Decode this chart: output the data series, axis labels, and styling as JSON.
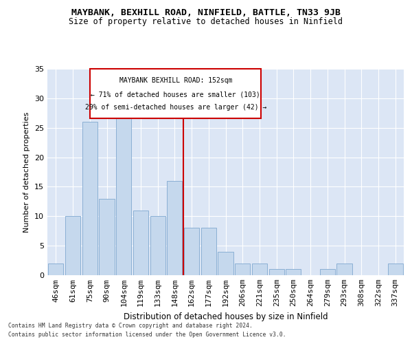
{
  "title1": "MAYBANK, BEXHILL ROAD, NINFIELD, BATTLE, TN33 9JB",
  "title2": "Size of property relative to detached houses in Ninfield",
  "xlabel": "Distribution of detached houses by size in Ninfield",
  "ylabel": "Number of detached properties",
  "categories": [
    "46sqm",
    "61sqm",
    "75sqm",
    "90sqm",
    "104sqm",
    "119sqm",
    "133sqm",
    "148sqm",
    "162sqm",
    "177sqm",
    "192sqm",
    "206sqm",
    "221sqm",
    "235sqm",
    "250sqm",
    "264sqm",
    "279sqm",
    "293sqm",
    "308sqm",
    "322sqm",
    "337sqm"
  ],
  "values": [
    2,
    10,
    26,
    13,
    27,
    11,
    10,
    16,
    8,
    8,
    4,
    2,
    2,
    1,
    1,
    0,
    1,
    2,
    0,
    0,
    2
  ],
  "bar_color": "#c5d8ed",
  "bar_edge_color": "#8aafd4",
  "reference_line_index": 7.5,
  "annotation_line1": "MAYBANK BEXHILL ROAD: 152sqm",
  "annotation_line2": "← 71% of detached houses are smaller (103)",
  "annotation_line3": "29% of semi-detached houses are larger (42) →",
  "annotation_box_color": "#cc0000",
  "ylim": [
    0,
    35
  ],
  "yticks": [
    0,
    5,
    10,
    15,
    20,
    25,
    30,
    35
  ],
  "background_color": "#dce6f5",
  "grid_color": "#ffffff",
  "fig_background": "#ffffff",
  "footer1": "Contains HM Land Registry data © Crown copyright and database right 2024.",
  "footer2": "Contains public sector information licensed under the Open Government Licence v3.0."
}
